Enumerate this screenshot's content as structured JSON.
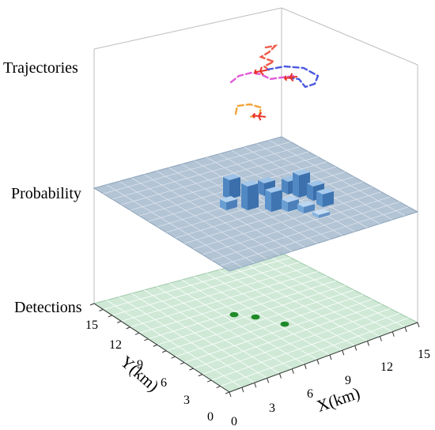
{
  "layers": {
    "trajectories_label": "Trajectories",
    "probability_label": "Probability",
    "detections_label": "Detections"
  },
  "axes": {
    "x_label": "X(km)",
    "y_label": "Y(km)",
    "x_ticks": [
      "0",
      "3",
      "6",
      "9",
      "12",
      "15"
    ],
    "y_ticks": [
      "0",
      "3",
      "6",
      "9",
      "12",
      "15"
    ]
  },
  "colors": {
    "detection_plane": "#cfe9d6",
    "probability_plane": "#a9bccf",
    "grid_line": "#ffffff",
    "box_frame": "#b8b8b8",
    "detection_marker": "#1e8a28",
    "probability_bar": "#5b8fc6",
    "aircraft_icon": "#e8342a",
    "traj_red": "#ee5a4a",
    "traj_blue": "#4a5ae0",
    "traj_magenta": "#e05ad8",
    "traj_orange": "#f2a33a"
  },
  "icons": [
    "aircraft-icon"
  ]
}
